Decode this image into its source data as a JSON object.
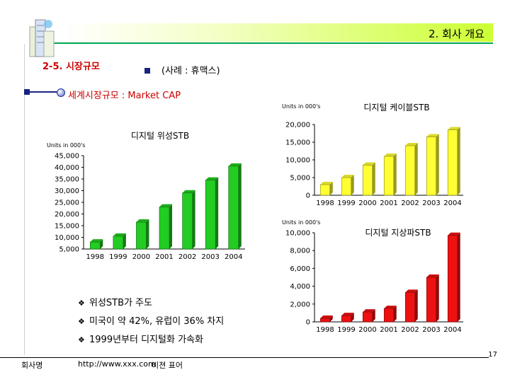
{
  "header": {
    "title": "2. 회사 개요"
  },
  "section": {
    "title": "2-5. 시장규모",
    "subtitle": "(사례 : 휴맥스)"
  },
  "market": {
    "title": "세계시장규모 : Market CAP"
  },
  "chart_data": [
    {
      "id": "satellite",
      "type": "bar",
      "title": "디지털 위성STB",
      "unit_label": "Units in 000's",
      "categories": [
        "1998",
        "1999",
        "2000",
        "2001",
        "2002",
        "2003",
        "2004"
      ],
      "values": [
        8000,
        10500,
        16500,
        23000,
        29000,
        34500,
        40500
      ],
      "ylim": [
        5000,
        45000
      ],
      "yticks": [
        "45,000",
        "40,000",
        "35,000",
        "30,000",
        "25,000",
        "20,000",
        "15,000",
        "10,000",
        "5,000"
      ],
      "color": "#22cc22"
    },
    {
      "id": "cable",
      "type": "bar",
      "title": "디지털 케이블STB",
      "unit_label": "Units in 000's",
      "categories": [
        "1998",
        "1999",
        "2000",
        "2001",
        "2002",
        "2003",
        "2004"
      ],
      "values": [
        3000,
        5000,
        8500,
        11000,
        14000,
        16500,
        18500
      ],
      "ylim": [
        0,
        20000
      ],
      "yticks": [
        "20,000",
        "15,000",
        "10,000",
        "5,000",
        "0"
      ],
      "color": "#ffff33"
    },
    {
      "id": "terrestrial",
      "type": "bar",
      "title": "디지털 지상파STB",
      "unit_label": "Units in 000's",
      "categories": [
        "1998",
        "1999",
        "2000",
        "2001",
        "2002",
        "2003",
        "2004"
      ],
      "values": [
        400,
        700,
        1100,
        1500,
        3300,
        5000,
        9700
      ],
      "ylim": [
        0,
        10000
      ],
      "yticks": [
        "10,000",
        "8,000",
        "6,000",
        "4,000",
        "2,000",
        "0"
      ],
      "color": "#ee1111"
    }
  ],
  "bullets": [
    "위성STB가 주도",
    "미국이 약 42%, 유럽이 36% 차지",
    "1999년부터 디지털화 가속화"
  ],
  "footer": {
    "company": "회사명",
    "url": "http://www.xxx.com",
    "vision": "비젼 표어",
    "page": "17"
  }
}
